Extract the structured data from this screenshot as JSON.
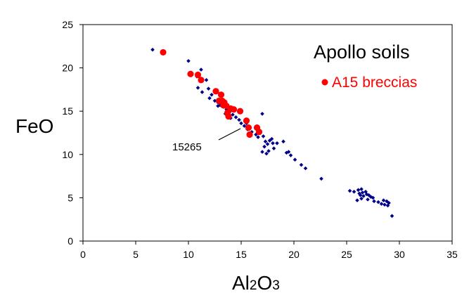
{
  "chart_data": {
    "type": "scatter",
    "title": "",
    "xlabel_main": "Al",
    "xlabel_sub1": "2",
    "xlabel_mid": "O",
    "xlabel_sub2": "3",
    "ylabel": "FeO",
    "xlim": [
      0,
      35
    ],
    "ylim": [
      0,
      25
    ],
    "x_ticks": [
      "0",
      "5",
      "10",
      "15",
      "20",
      "25",
      "30",
      "35"
    ],
    "y_ticks": [
      "0",
      "5",
      "10",
      "15",
      "20",
      "25"
    ],
    "grid": false,
    "legend_text": "Apollo soils",
    "annotation": "15265",
    "colors": {
      "soils": "#00008b",
      "breccias": "#ff0000"
    },
    "series": [
      {
        "name": "Apollo soils",
        "points": [
          [
            6.6,
            22.1
          ],
          [
            10.0,
            20.8
          ],
          [
            11.2,
            19.8
          ],
          [
            10.8,
            19.0
          ],
          [
            11.7,
            18.6
          ],
          [
            10.9,
            17.7
          ],
          [
            11.3,
            17.2
          ],
          [
            11.9,
            17.6
          ],
          [
            12.0,
            16.5
          ],
          [
            12.2,
            16.9
          ],
          [
            12.5,
            16.2
          ],
          [
            12.8,
            16.0
          ],
          [
            13.0,
            15.7
          ],
          [
            13.3,
            15.5
          ],
          [
            13.6,
            15.2
          ],
          [
            13.9,
            14.9
          ],
          [
            14.2,
            14.6
          ],
          [
            14.5,
            14.3
          ],
          [
            14.8,
            14.0
          ],
          [
            15.0,
            13.6
          ],
          [
            15.3,
            13.3
          ],
          [
            15.6,
            12.9
          ],
          [
            16.0,
            12.6
          ],
          [
            16.4,
            12.3
          ],
          [
            16.6,
            12.0
          ],
          [
            17.0,
            14.7
          ],
          [
            17.1,
            12.1
          ],
          [
            17.3,
            11.5
          ],
          [
            17.5,
            11.2
          ],
          [
            17.2,
            10.9
          ],
          [
            17.6,
            10.4
          ],
          [
            17.9,
            11.8
          ],
          [
            17.7,
            11.6
          ],
          [
            18.0,
            11.3
          ],
          [
            17.4,
            10.1
          ],
          [
            18.1,
            10.7
          ],
          [
            17.0,
            10.3
          ],
          [
            18.4,
            11.3
          ],
          [
            19.0,
            11.5
          ],
          [
            19.3,
            10.2
          ],
          [
            19.7,
            9.9
          ],
          [
            19.5,
            10.3
          ],
          [
            20.1,
            9.4
          ],
          [
            20.7,
            8.8
          ],
          [
            21.1,
            8.4
          ],
          [
            22.6,
            7.2
          ],
          [
            15.5,
            13.6
          ],
          [
            14.0,
            14.2
          ],
          [
            13.5,
            14.7
          ],
          [
            12.8,
            15.6
          ],
          [
            25.3,
            5.8
          ],
          [
            25.7,
            5.7
          ],
          [
            26.1,
            5.9
          ],
          [
            26.4,
            6.0
          ],
          [
            26.2,
            5.5
          ],
          [
            26.5,
            5.6
          ],
          [
            26.8,
            5.7
          ],
          [
            26.3,
            5.3
          ],
          [
            26.6,
            5.2
          ],
          [
            26.9,
            5.4
          ],
          [
            27.1,
            5.3
          ],
          [
            26.4,
            4.9
          ],
          [
            27.3,
            5.1
          ],
          [
            27.5,
            5.0
          ],
          [
            26.0,
            4.7
          ],
          [
            27.0,
            4.8
          ],
          [
            27.6,
            4.6
          ],
          [
            28.0,
            4.5
          ],
          [
            28.3,
            4.3
          ],
          [
            28.6,
            4.2
          ],
          [
            28.8,
            4.6
          ],
          [
            28.9,
            4.1
          ],
          [
            29.0,
            4.4
          ],
          [
            28.5,
            4.7
          ],
          [
            29.3,
            2.9
          ]
        ]
      },
      {
        "name": "A15 breccias",
        "points": [
          [
            7.6,
            21.8
          ],
          [
            10.2,
            19.3
          ],
          [
            10.9,
            19.2
          ],
          [
            11.2,
            18.6
          ],
          [
            12.6,
            17.3
          ],
          [
            13.1,
            16.9
          ],
          [
            12.9,
            16.2
          ],
          [
            13.2,
            16.2
          ],
          [
            13.4,
            16.0
          ],
          [
            13.3,
            15.7
          ],
          [
            13.6,
            15.6
          ],
          [
            13.7,
            14.8
          ],
          [
            13.8,
            14.4
          ],
          [
            14.0,
            15.3
          ],
          [
            14.3,
            15.2
          ],
          [
            14.9,
            15.0
          ],
          [
            15.5,
            13.9
          ],
          [
            15.7,
            13.1
          ],
          [
            15.8,
            12.3
          ],
          [
            16.5,
            13.1
          ],
          [
            16.7,
            12.6
          ]
        ]
      }
    ]
  }
}
